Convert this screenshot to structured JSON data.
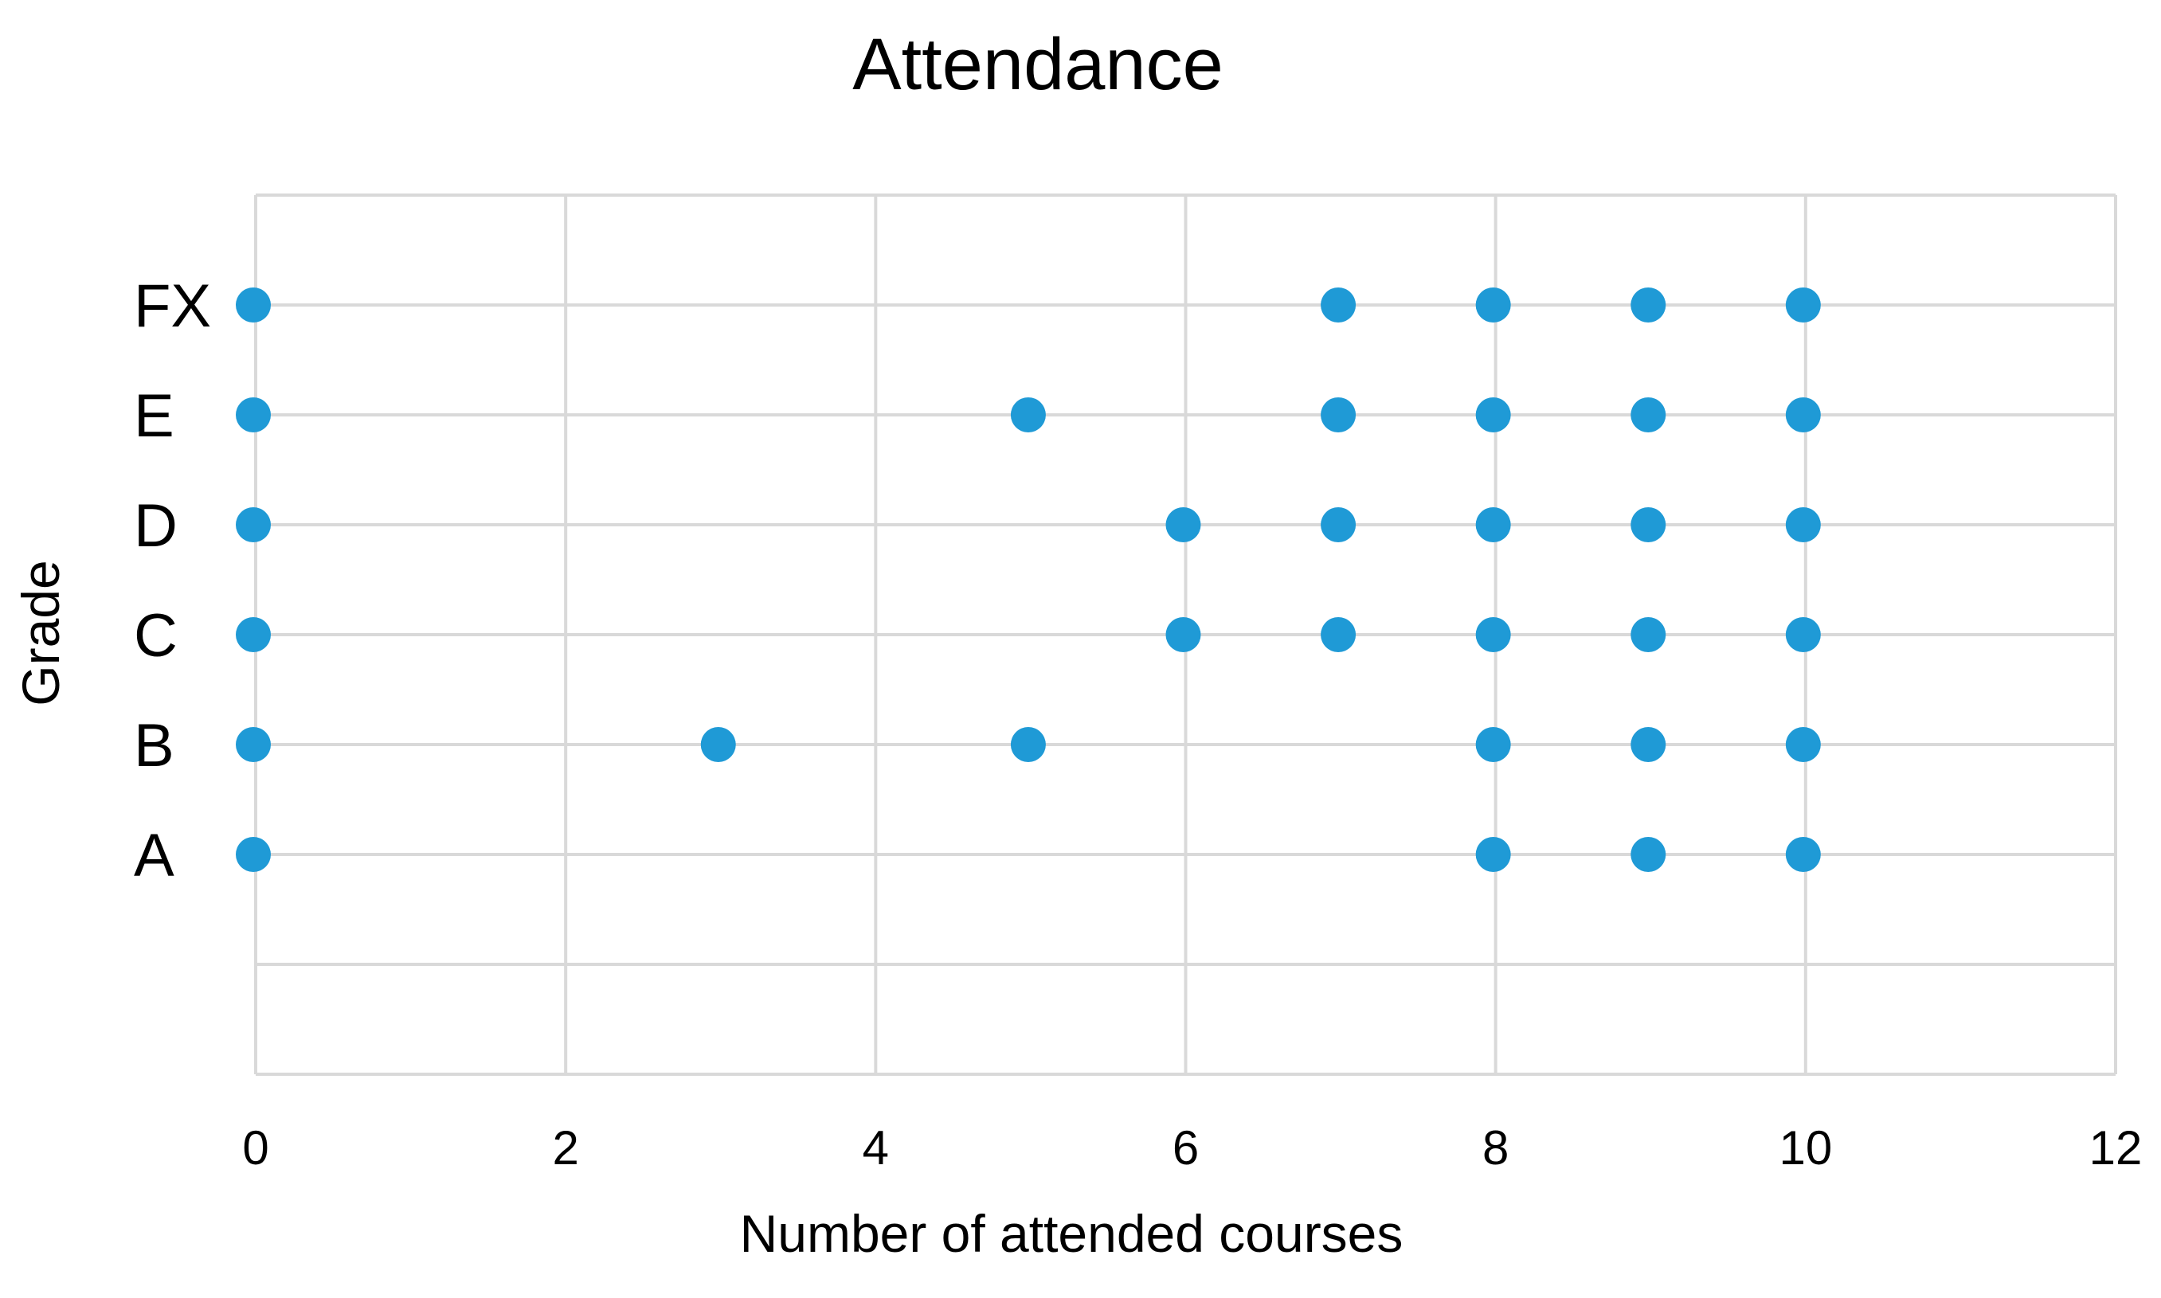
{
  "chart_data": {
    "type": "scatter",
    "title": "Attendance",
    "xlabel": "Number of attended courses",
    "ylabel": "Grade",
    "xlim": [
      0,
      12
    ],
    "x_ticks": [
      "0",
      "2",
      "4",
      "6",
      "8",
      "10",
      "12"
    ],
    "categories": [
      "A",
      "B",
      "C",
      "D",
      "E",
      "FX"
    ],
    "grid": true,
    "legend": "none",
    "marker_color": "#1f9ad6",
    "gridline_color": "#d9d9d9",
    "series": [
      {
        "points": [
          {
            "x": 0,
            "y": "FX"
          },
          {
            "x": 7,
            "y": "FX"
          },
          {
            "x": 8,
            "y": "FX"
          },
          {
            "x": 9,
            "y": "FX"
          },
          {
            "x": 10,
            "y": "FX"
          },
          {
            "x": 0,
            "y": "E"
          },
          {
            "x": 5,
            "y": "E"
          },
          {
            "x": 7,
            "y": "E"
          },
          {
            "x": 8,
            "y": "E"
          },
          {
            "x": 9,
            "y": "E"
          },
          {
            "x": 10,
            "y": "E"
          },
          {
            "x": 0,
            "y": "D"
          },
          {
            "x": 6,
            "y": "D"
          },
          {
            "x": 7,
            "y": "D"
          },
          {
            "x": 8,
            "y": "D"
          },
          {
            "x": 9,
            "y": "D"
          },
          {
            "x": 10,
            "y": "D"
          },
          {
            "x": 0,
            "y": "C"
          },
          {
            "x": 6,
            "y": "C"
          },
          {
            "x": 7,
            "y": "C"
          },
          {
            "x": 8,
            "y": "C"
          },
          {
            "x": 9,
            "y": "C"
          },
          {
            "x": 10,
            "y": "C"
          },
          {
            "x": 0,
            "y": "B"
          },
          {
            "x": 3,
            "y": "B"
          },
          {
            "x": 5,
            "y": "B"
          },
          {
            "x": 8,
            "y": "B"
          },
          {
            "x": 9,
            "y": "B"
          },
          {
            "x": 10,
            "y": "B"
          },
          {
            "x": 0,
            "y": "A"
          },
          {
            "x": 8,
            "y": "A"
          },
          {
            "x": 9,
            "y": "A"
          },
          {
            "x": 10,
            "y": "A"
          }
        ]
      }
    ]
  }
}
